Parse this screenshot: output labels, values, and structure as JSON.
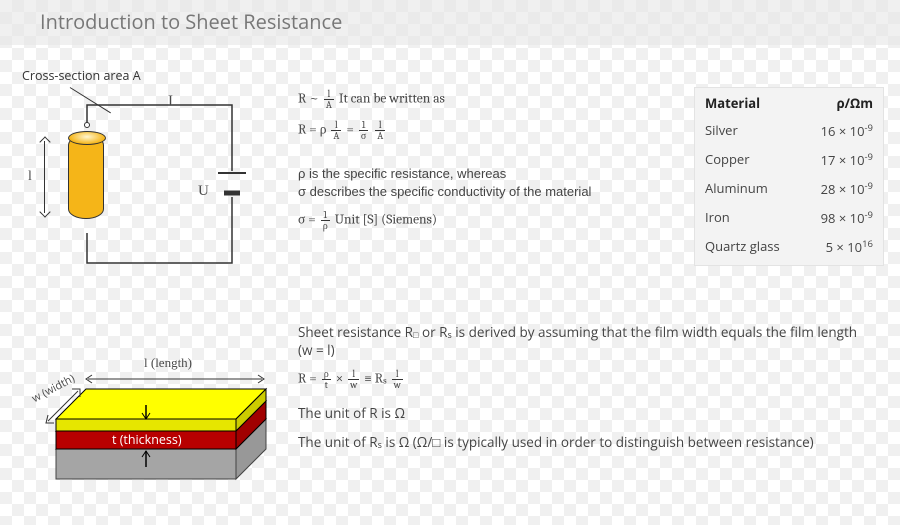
{
  "title": "Introduction to Sheet Resistance",
  "circuit": {
    "cross_section_label": "Cross-section area A",
    "length_label": "l",
    "current_label": "I",
    "voltage_label": "U",
    "cylinder_color": "#f5b518",
    "wire_color": "#333333"
  },
  "slab": {
    "length_label": "l (length)",
    "width_label": "w (width)",
    "thickness_label": "t (thickness)",
    "top_color": "#ffff00",
    "mid_color": "#d40000",
    "base_color": "#b5b5b5",
    "edge_color": "#000000"
  },
  "formulas": {
    "line1_prefix": "R ~ ",
    "line1_suffix": "  It can be written as",
    "line2_lhs": "R = ρ ",
    "line2_mid": " = ",
    "note1": "ρ is the specific resistance, whereas",
    "note2": "σ describes the specific conductivity of the material",
    "sigma_lhs": "σ = ",
    "sigma_unit": "  Unit [S] (Siemens)"
  },
  "lower_text": {
    "p1a": "Sheet resistance R",
    "p1b": " or R",
    "p1c": " is derived by assuming that the film width equals the film length (w = l)",
    "eq_lhs": "R = ",
    "eq_mid1": " × ",
    "eq_mid2": " ≡ R",
    "unit1": "The unit of R is Ω",
    "unit2a": "The unit of R",
    "unit2b": " is Ω (Ω/□ is typically used in order to distinguish between resistance)"
  },
  "table": {
    "header_left": "Material",
    "header_right": "ρ/Ωm",
    "rows": [
      {
        "name": "Silver",
        "value": "16 × 10",
        "exp": "-9"
      },
      {
        "name": "Copper",
        "value": "17 × 10",
        "exp": "-9"
      },
      {
        "name": "Aluminum",
        "value": "28 × 10",
        "exp": "-9"
      },
      {
        "name": "Iron",
        "value": "98 × 10",
        "exp": "-9"
      },
      {
        "name": "Quartz glass",
        "value": "5 × 10",
        "exp": "16"
      }
    ],
    "bg_color": "#f3f3f3"
  }
}
